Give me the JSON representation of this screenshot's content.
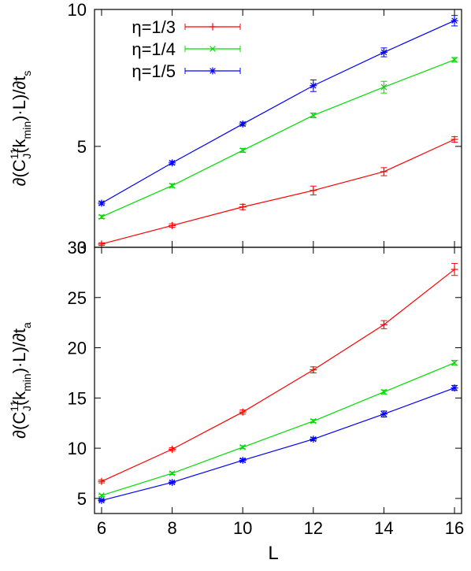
{
  "figure": {
    "xlabel": "L"
  },
  "chart_data": [
    {
      "type": "line",
      "panel": "top",
      "ylabel_main": "∂(C",
      "ylabel_sup": "11",
      "ylabel_sub_j": "J",
      "ylabel_mid": "(k",
      "ylabel_sub_min": "min",
      "ylabel_tail": ")·L)/∂t",
      "ylabel_sub_end": "s",
      "x": [
        6,
        8,
        10,
        12,
        14,
        16
      ],
      "xlim": [
        5.8,
        16.2
      ],
      "ylim": [
        3,
        10
      ],
      "yscale": "log",
      "yticks": [
        3,
        5,
        10
      ],
      "ytick_labels": [
        "3",
        "5",
        "10"
      ],
      "grid": false,
      "legend": "top-left",
      "series": [
        {
          "name": "η=1/3",
          "color": "#ff0000",
          "marker": "plus",
          "values": [
            3.05,
            3.35,
            3.68,
            4.0,
            4.4,
            5.18
          ],
          "errors": [
            0.02,
            0.03,
            0.05,
            0.09,
            0.09,
            0.07
          ]
        },
        {
          "name": "η=1/4",
          "color": "#00dd00",
          "marker": "x",
          "values": [
            3.5,
            4.1,
            4.9,
            5.85,
            6.75,
            7.75
          ],
          "errors": [
            0.03,
            0.04,
            0.05,
            0.07,
            0.2,
            0.09
          ]
        },
        {
          "name": "η=1/5",
          "color": "#0000ff",
          "marker": "star",
          "values": [
            3.75,
            4.6,
            5.6,
            6.8,
            8.05,
            9.45
          ],
          "errors": [
            0.03,
            0.04,
            0.05,
            0.2,
            0.18,
            0.25
          ]
        }
      ]
    },
    {
      "type": "line",
      "panel": "bottom",
      "ylabel_main": "∂(C",
      "ylabel_sup": "11",
      "ylabel_sub_j": "J",
      "ylabel_mid": "(k",
      "ylabel_sub_min": "min",
      "ylabel_tail": ")·L)/∂t",
      "ylabel_sub_end": "a",
      "x": [
        6,
        8,
        10,
        12,
        14,
        16
      ],
      "xlim": [
        5.8,
        16.2
      ],
      "ylim": [
        3.5,
        30
      ],
      "yscale": "linear",
      "yticks": [
        5,
        10,
        15,
        20,
        25,
        30
      ],
      "ytick_labels": [
        "5",
        "10",
        "15",
        "20",
        "25",
        "30"
      ],
      "xticks": [
        6,
        8,
        10,
        12,
        14,
        16
      ],
      "xtick_labels": [
        "6",
        "8",
        "10",
        "12",
        "14",
        "16"
      ],
      "grid": false,
      "series": [
        {
          "name": "η=1/3",
          "color": "#ff0000",
          "marker": "plus",
          "values": [
            6.7,
            9.9,
            13.6,
            17.8,
            22.3,
            27.8
          ],
          "errors": [
            0.15,
            0.15,
            0.2,
            0.3,
            0.4,
            0.6
          ]
        },
        {
          "name": "η=1/4",
          "color": "#00dd00",
          "marker": "x",
          "values": [
            5.3,
            7.5,
            10.1,
            12.7,
            15.6,
            18.5
          ],
          "errors": [
            0.1,
            0.12,
            0.15,
            0.15,
            0.2,
            0.25
          ]
        },
        {
          "name": "η=1/5",
          "color": "#0000ff",
          "marker": "star",
          "values": [
            4.8,
            6.6,
            8.8,
            10.9,
            13.4,
            16.0
          ],
          "errors": [
            0.1,
            0.12,
            0.15,
            0.15,
            0.3,
            0.25
          ]
        }
      ]
    }
  ]
}
